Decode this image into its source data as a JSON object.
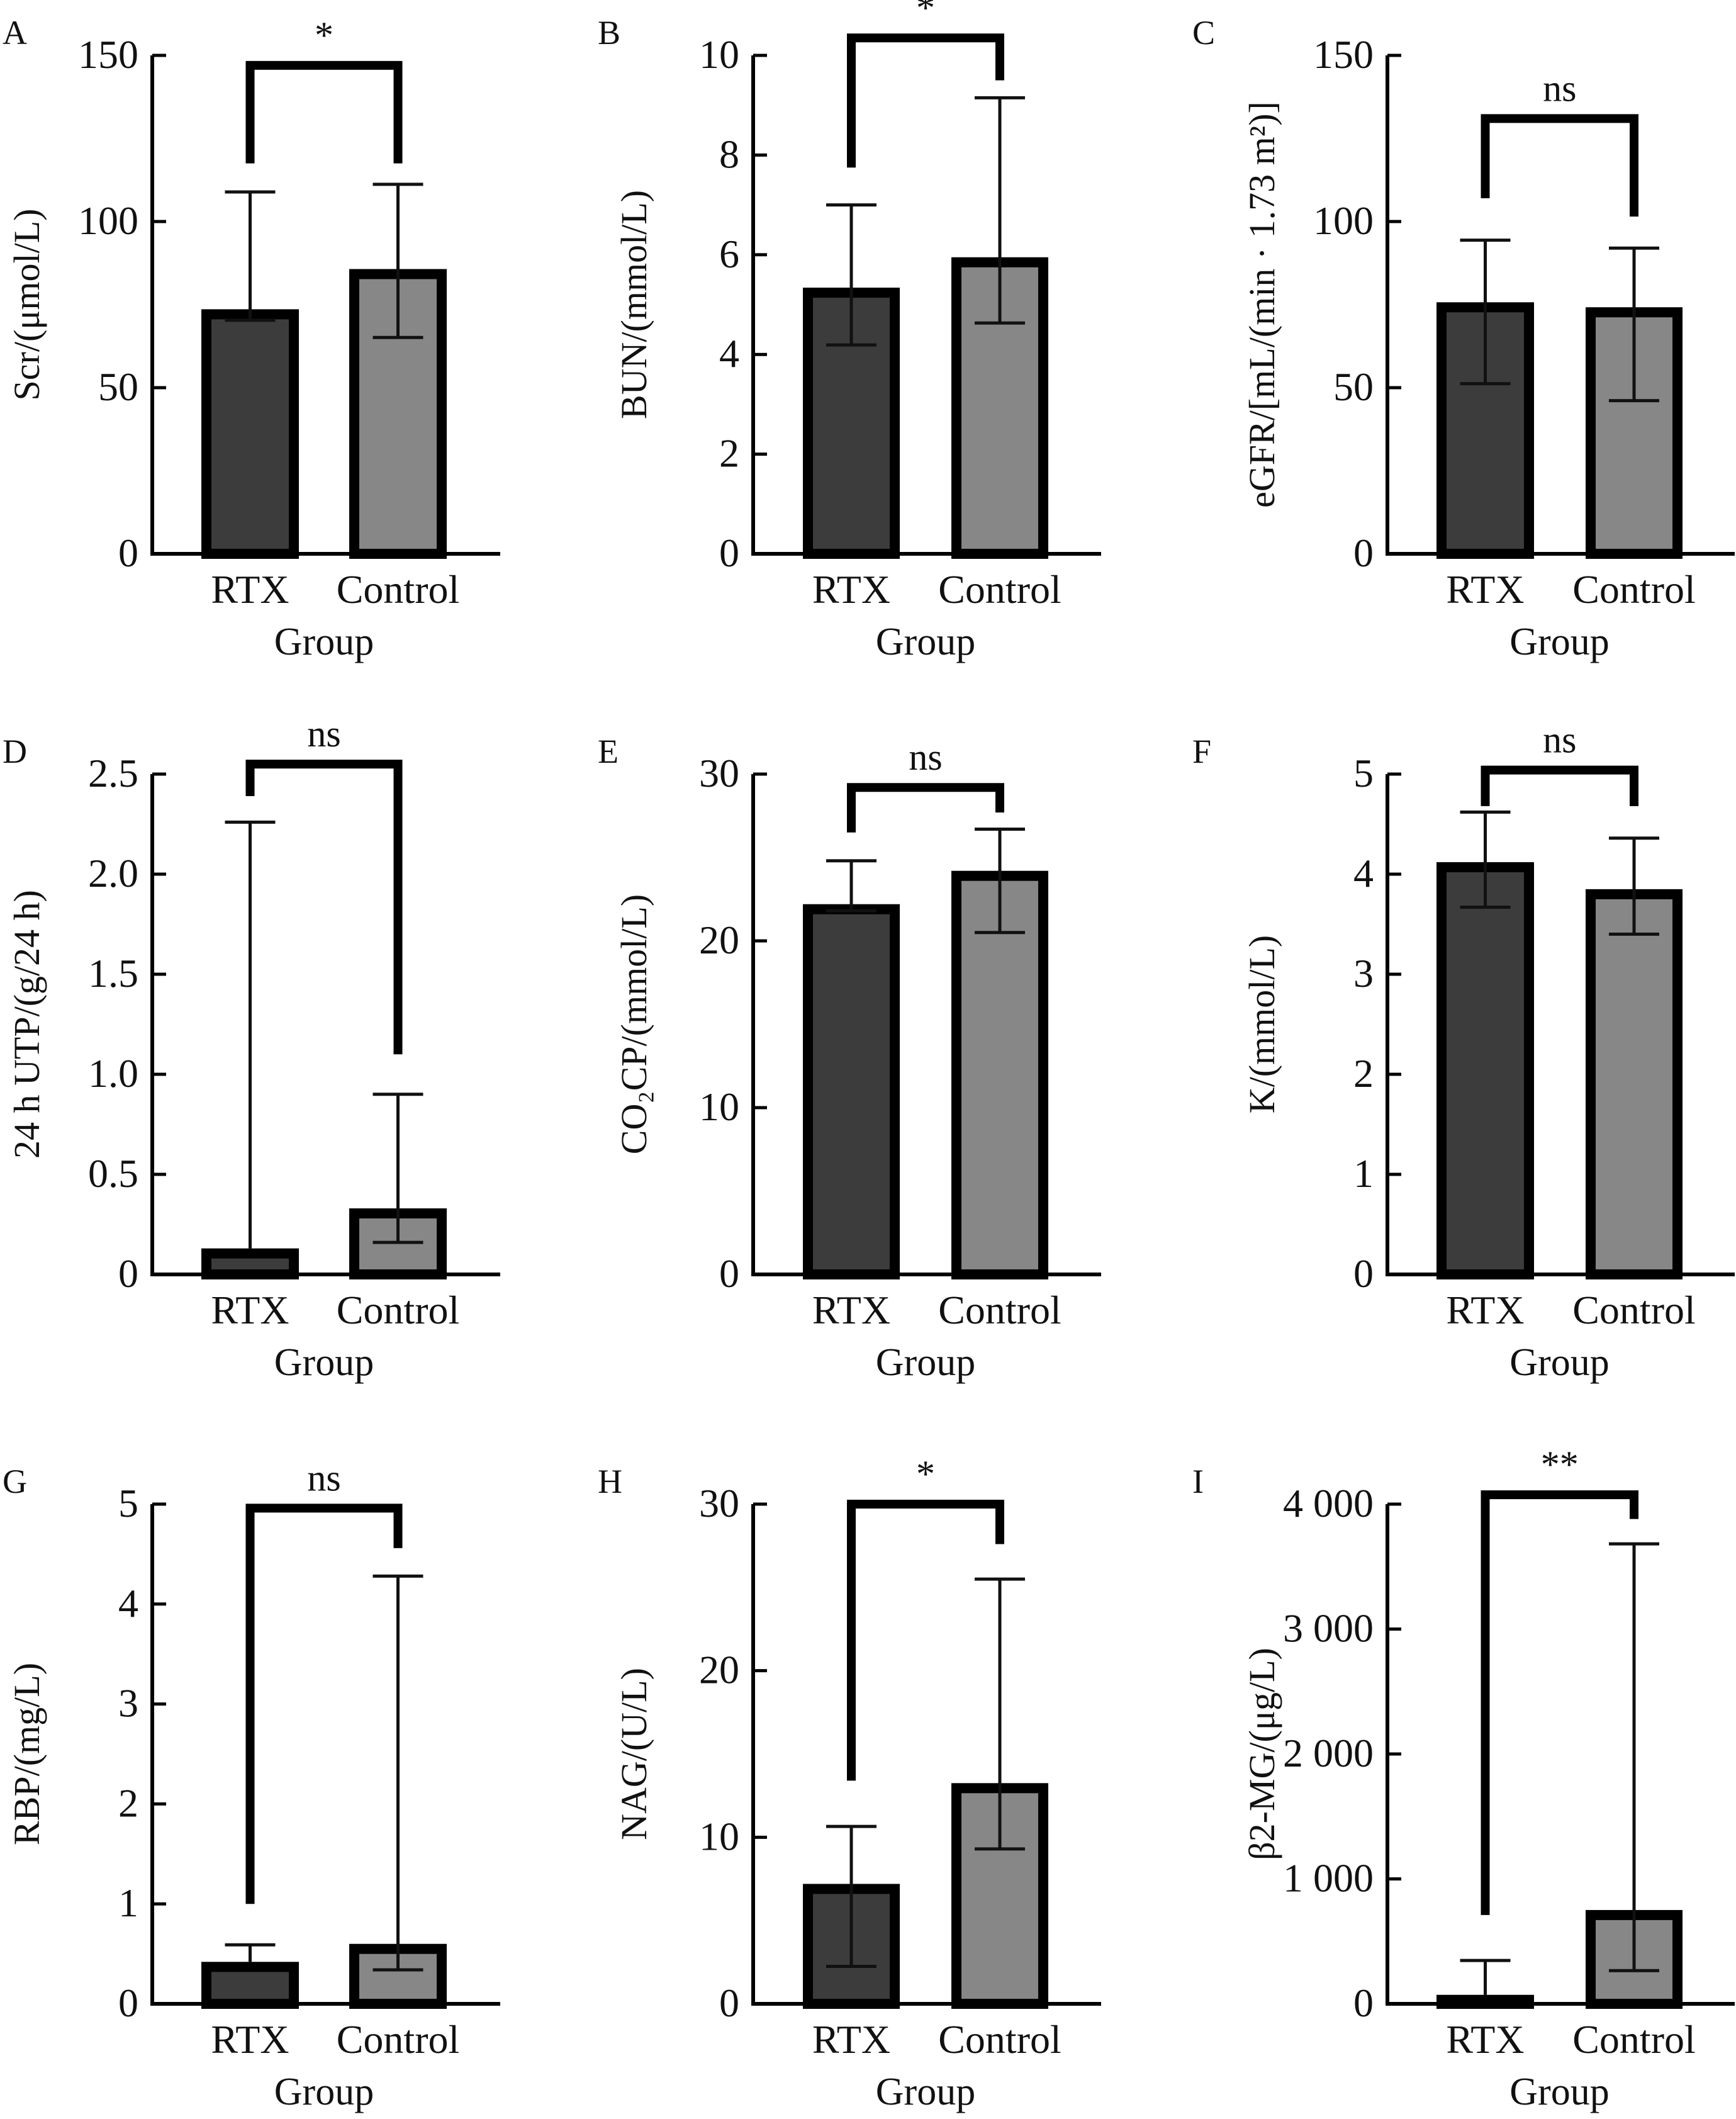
{
  "figure": {
    "colors": {
      "rtx_fill": "#3c3c3c",
      "control_fill": "#878787",
      "outline": "#000000",
      "background": "#ffffff"
    }
  },
  "chart_data": [
    {
      "type": "bar",
      "panel": "A",
      "title": "",
      "xlabel": "Group",
      "ylabel": "Scr/(μmol/L)",
      "categories": [
        "RTX",
        "Control"
      ],
      "values": [
        73.6,
        85.7
      ],
      "error_upper": [
        108.9,
        111.2
      ],
      "error_lower": [
        70.3,
        65.1
      ],
      "ylim": [
        0,
        150
      ],
      "yticks": [
        0,
        50,
        100,
        150
      ],
      "ytick_labels": [
        "0",
        "50",
        "100",
        "150"
      ],
      "significance": {
        "label": "*",
        "bracket_top": 147,
        "left_leg_end": 117.5,
        "right_leg_end": 117.5
      },
      "grid": false,
      "legend": "none"
    },
    {
      "type": "bar",
      "panel": "B",
      "title": "",
      "xlabel": "Group",
      "ylabel": "BUN/(mmol/L)",
      "categories": [
        "RTX",
        "Control"
      ],
      "values": [
        5.34,
        5.95
      ],
      "error_upper": [
        7.0,
        9.15
      ],
      "error_lower": [
        4.19,
        4.63
      ],
      "ylim": [
        0,
        10
      ],
      "yticks": [
        0,
        2,
        4,
        6,
        8,
        10
      ],
      "ytick_labels": [
        "0",
        "2",
        "4",
        "6",
        "8",
        "10"
      ],
      "significance": {
        "label": "*",
        "bracket_top": 10.35,
        "left_leg_end": 7.75,
        "right_leg_end": 9.5
      },
      "grid": false,
      "legend": "none"
    },
    {
      "type": "bar",
      "panel": "C",
      "title": "",
      "xlabel": "Group",
      "ylabel": "eGFR/[mL/(min · 1.73 m²)]",
      "categories": [
        "RTX",
        "Control"
      ],
      "values": [
        75.7,
        74.2
      ],
      "error_upper": [
        94.4,
        92.0
      ],
      "error_lower": [
        51.2,
        46.1
      ],
      "ylim": [
        0,
        150
      ],
      "yticks": [
        0,
        50,
        100,
        150
      ],
      "ytick_labels": [
        "0",
        "50",
        "100",
        "150"
      ],
      "significance": {
        "label": "ns",
        "bracket_top": 131,
        "left_leg_end": 107,
        "right_leg_end": 101.5
      },
      "grid": false,
      "legend": "none"
    },
    {
      "type": "bar",
      "panel": "D",
      "title": "",
      "xlabel": "Group",
      "ylabel": "24 h UTP/(g/24 h)",
      "categories": [
        "RTX",
        "Control"
      ],
      "values": [
        0.13,
        0.33
      ],
      "error_upper": [
        2.26,
        0.9
      ],
      "error_lower": [
        null,
        0.16
      ],
      "ylim": [
        0,
        2.5
      ],
      "yticks": [
        0,
        0.5,
        1.0,
        1.5,
        2.0,
        2.5
      ],
      "ytick_labels": [
        "0",
        "0.5",
        "1.0",
        "1.5",
        "2.0",
        "2.5"
      ],
      "significance": {
        "label": "ns",
        "bracket_top": 2.55,
        "left_leg_end": 2.39,
        "right_leg_end": 1.1
      },
      "grid": false,
      "legend": "none"
    },
    {
      "type": "bar",
      "panel": "E",
      "title": "",
      "xlabel": "Group",
      "ylabel": "CO₂CP/(mmol/L)",
      "categories": [
        "RTX",
        "Control"
      ],
      "values": [
        22.2,
        24.2
      ],
      "error_upper": [
        24.8,
        26.7
      ],
      "error_lower": [
        21.8,
        20.5
      ],
      "ylim": [
        0,
        30
      ],
      "yticks": [
        0,
        10,
        20,
        30
      ],
      "ytick_labels": [
        "0",
        "10",
        "20",
        "30"
      ],
      "significance": {
        "label": "ns",
        "bracket_top": 29.2,
        "left_leg_end": 26.5,
        "right_leg_end": 27.7
      },
      "grid": false,
      "legend": "none"
    },
    {
      "type": "bar",
      "panel": "F",
      "title": "",
      "xlabel": "Group",
      "ylabel": "K/(mmol/L)",
      "categories": [
        "RTX",
        "Control"
      ],
      "values": [
        4.12,
        3.85
      ],
      "error_upper": [
        4.62,
        4.36
      ],
      "error_lower": [
        3.67,
        3.4
      ],
      "ylim": [
        0,
        5
      ],
      "yticks": [
        0,
        1,
        2,
        3,
        4,
        5
      ],
      "ytick_labels": [
        "0",
        "1",
        "2",
        "3",
        "4",
        "5"
      ],
      "significance": {
        "label": "ns",
        "bracket_top": 5.04,
        "left_leg_end": 4.68,
        "right_leg_end": 4.68
      },
      "grid": false,
      "legend": "none"
    },
    {
      "type": "bar",
      "panel": "G",
      "title": "",
      "xlabel": "Group",
      "ylabel": "RBP/(mg/L)",
      "categories": [
        "RTX",
        "Control"
      ],
      "values": [
        0.42,
        0.6
      ],
      "error_upper": [
        0.59,
        4.28
      ],
      "error_lower": [
        null,
        0.34
      ],
      "ylim": [
        0,
        5
      ],
      "yticks": [
        0,
        1,
        2,
        3,
        4,
        5
      ],
      "ytick_labels": [
        "0",
        "1",
        "2",
        "3",
        "4",
        "5"
      ],
      "significance": {
        "label": "ns",
        "bracket_top": 4.96,
        "left_leg_end": 1.0,
        "right_leg_end": 4.56
      },
      "grid": false,
      "legend": "none"
    },
    {
      "type": "bar",
      "panel": "H",
      "title": "",
      "xlabel": "Group",
      "ylabel": "NAG/(U/L)",
      "categories": [
        "RTX",
        "Control"
      ],
      "values": [
        7.2,
        13.25
      ],
      "error_upper": [
        10.65,
        25.5
      ],
      "error_lower": [
        2.25,
        9.3
      ],
      "ylim": [
        0,
        30
      ],
      "yticks": [
        0,
        10,
        20,
        30
      ],
      "ytick_labels": [
        "0",
        "10",
        "20",
        "30"
      ],
      "significance": {
        "label": "*",
        "bracket_top": 30.0,
        "left_leg_end": 13.4,
        "right_leg_end": 27.6
      },
      "grid": false,
      "legend": "none"
    },
    {
      "type": "bar",
      "panel": "I",
      "title": "",
      "xlabel": "Group",
      "ylabel": "β2-MG/(μg/L)",
      "categories": [
        "RTX",
        "Control"
      ],
      "values": [
        72,
        751
      ],
      "error_upper": [
        347,
        3682
      ],
      "error_lower": [
        null,
        266
      ],
      "ylim": [
        0,
        4000
      ],
      "yticks": [
        0,
        1000,
        2000,
        3000,
        4000
      ],
      "ytick_labels": [
        "0",
        "1 000",
        "2 000",
        "3 000",
        "4 000"
      ],
      "significance": {
        "label": "**",
        "bracket_top": 4075,
        "left_leg_end": 711,
        "right_leg_end": 3881
      },
      "grid": false,
      "legend": "none"
    }
  ]
}
